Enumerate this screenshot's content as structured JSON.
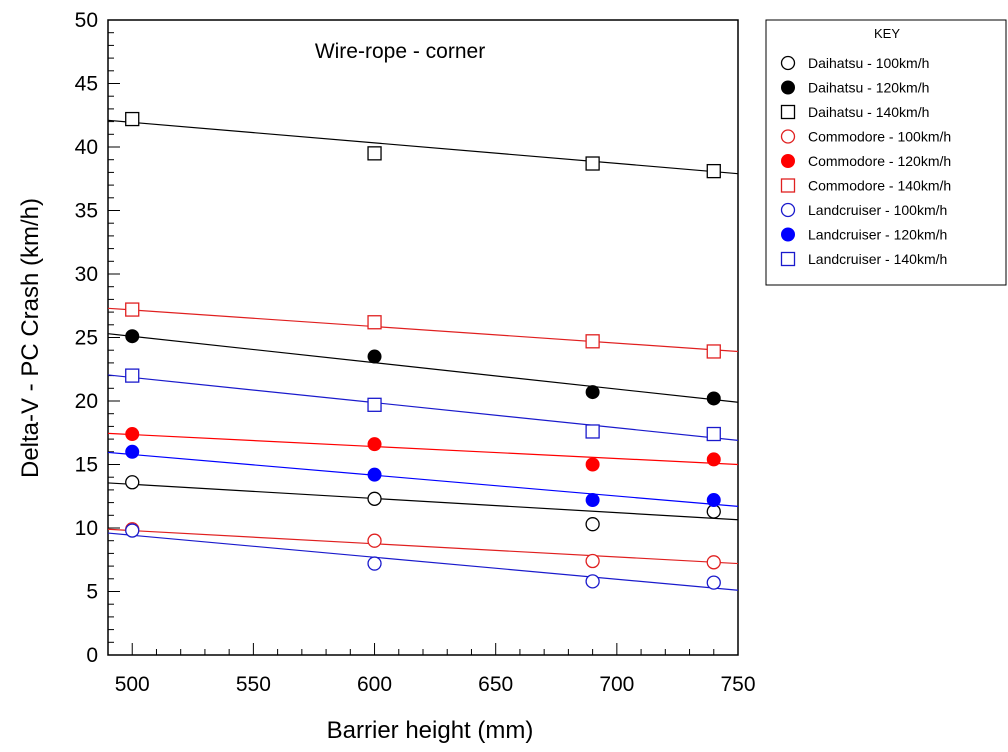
{
  "chart_data": {
    "type": "scatter",
    "title": "Wire-rope - corner",
    "xlabel": "Barrier height (mm)",
    "ylabel": "Delta-V - PC Crash (km/h)",
    "xlim": [
      490,
      750
    ],
    "ylim": [
      0,
      50
    ],
    "xticks": [
      500,
      550,
      600,
      650,
      700,
      750
    ],
    "yticks": [
      0,
      5,
      10,
      15,
      20,
      25,
      30,
      35,
      40,
      45,
      50
    ],
    "legend": {
      "title": "KEY",
      "placement": "right"
    },
    "series": [
      {
        "name": "Daihatsu - 100km/h",
        "color": "#000000",
        "marker": "circle-open",
        "x": [
          500,
          600,
          690,
          740
        ],
        "y": [
          13.6,
          12.3,
          10.3,
          11.3
        ],
        "fit": [
          13.55,
          10.65
        ]
      },
      {
        "name": "Daihatsu - 120km/h",
        "color": "#000000",
        "marker": "circle-filled",
        "x": [
          500,
          600,
          690,
          740
        ],
        "y": [
          25.1,
          23.5,
          20.7,
          20.2
        ],
        "fit": [
          25.3,
          19.9
        ]
      },
      {
        "name": "Daihatsu - 140km/h",
        "color": "#000000",
        "marker": "square-open",
        "x": [
          500,
          600,
          690,
          740
        ],
        "y": [
          42.2,
          39.5,
          38.7,
          38.1
        ],
        "fit": [
          42.1,
          37.9
        ]
      },
      {
        "name": "Commodore - 100km/h",
        "color": "#e02020",
        "marker": "circle-open",
        "x": [
          500,
          600,
          690,
          740
        ],
        "y": [
          9.9,
          9.0,
          7.4,
          7.3
        ],
        "fit": [
          9.9,
          7.2
        ]
      },
      {
        "name": "Commodore - 120km/h",
        "color": "#ff0000",
        "marker": "circle-filled",
        "x": [
          500,
          600,
          690,
          740
        ],
        "y": [
          17.4,
          16.6,
          15.0,
          15.4
        ],
        "fit": [
          17.45,
          15.0
        ]
      },
      {
        "name": "Commodore - 140km/h",
        "color": "#e02020",
        "marker": "square-open",
        "x": [
          500,
          600,
          690,
          740
        ],
        "y": [
          27.2,
          26.2,
          24.7,
          23.9
        ],
        "fit": [
          27.3,
          23.9
        ]
      },
      {
        "name": "Landcruiser - 100km/h",
        "color": "#1a1acc",
        "marker": "circle-open",
        "x": [
          500,
          600,
          690,
          740
        ],
        "y": [
          9.8,
          7.2,
          5.8,
          5.7
        ],
        "fit": [
          9.6,
          5.1
        ]
      },
      {
        "name": "Landcruiser - 120km/h",
        "color": "#0000ff",
        "marker": "circle-filled",
        "x": [
          500,
          600,
          690,
          740
        ],
        "y": [
          16.0,
          14.2,
          12.2,
          12.2
        ],
        "fit": [
          15.95,
          11.7
        ]
      },
      {
        "name": "Landcruiser - 140km/h",
        "color": "#1a1acc",
        "marker": "square-open",
        "x": [
          500,
          600,
          690,
          740
        ],
        "y": [
          22.0,
          19.7,
          17.6,
          17.4
        ],
        "fit": [
          22.05,
          16.9
        ]
      }
    ]
  }
}
